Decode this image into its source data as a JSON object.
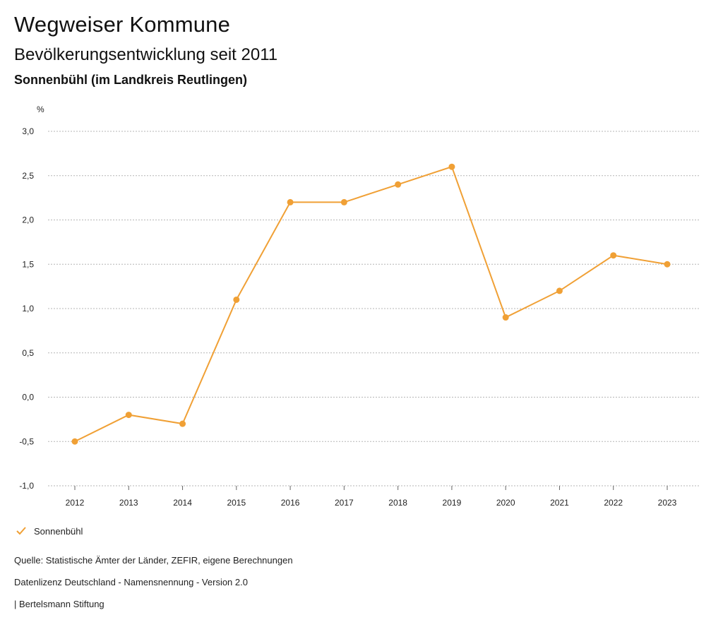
{
  "header": {
    "title": "Wegweiser Kommune",
    "subtitle": "Bevölkerungsentwicklung seit 2011",
    "region": "Sonnenbühl (im Landkreis Reutlingen)"
  },
  "colors": {
    "series": "#f0a035",
    "grid": "#b5b5b5",
    "text": "#222222"
  },
  "chart_data": {
    "type": "line",
    "title": "Bevölkerungsentwicklung seit 2011",
    "xlabel": "",
    "ylabel": "%",
    "categories": [
      "2012",
      "2013",
      "2014",
      "2015",
      "2016",
      "2017",
      "2018",
      "2019",
      "2020",
      "2021",
      "2022",
      "2023"
    ],
    "series": [
      {
        "name": "Sonnenbühl",
        "values": [
          -0.5,
          -0.2,
          -0.3,
          1.1,
          2.2,
          2.2,
          2.4,
          2.6,
          0.9,
          1.2,
          1.6,
          1.5
        ]
      }
    ],
    "ylim": [
      -1.0,
      3.0
    ],
    "yticks": [
      3.0,
      2.5,
      2.0,
      1.5,
      1.0,
      0.5,
      0.0,
      -0.5,
      -1.0
    ],
    "ytick_labels": [
      "3,0",
      "2,5",
      "2,0",
      "1,5",
      "1,0",
      "0,5",
      "0,0",
      "-0,5",
      "-1,0"
    ],
    "grid": true,
    "legend_position": "bottom-left"
  },
  "legend": {
    "label": "Sonnenbühl",
    "icon": "checkmark-icon"
  },
  "footer": {
    "source": "Quelle: Statistische Ämter der Länder, ZEFIR, eigene Berechnungen",
    "license": "Datenlizenz Deutschland - Namensnennung - Version 2.0",
    "publisher": "| Bertelsmann Stiftung"
  }
}
